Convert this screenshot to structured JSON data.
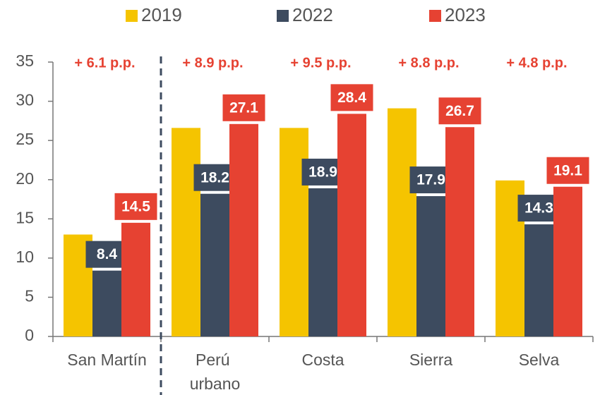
{
  "chart_data": {
    "type": "bar",
    "categories": [
      "San Martín",
      "Perú urbano",
      "Costa",
      "Sierra",
      "Selva"
    ],
    "series": [
      {
        "name": "2019",
        "color": "#f5c400",
        "values": [
          13,
          26.6,
          26.6,
          29.1,
          19.9
        ]
      },
      {
        "name": "2022",
        "color": "#3d4b5f",
        "values": [
          8.4,
          18.2,
          18.9,
          17.9,
          14.3
        ]
      },
      {
        "name": "2023",
        "color": "#e64232",
        "values": [
          14.5,
          27.1,
          28.4,
          26.7,
          19.1
        ]
      }
    ],
    "labeled_series": [
      1,
      2
    ],
    "annotations": [
      "+ 6.1 p.p.",
      "+ 8.9 p.p.",
      "+ 9.5 p.p.",
      "+ 8.8 p.p.",
      "+ 4.8 p.p."
    ],
    "ylim": [
      0,
      35
    ],
    "yticks": [
      0,
      5,
      10,
      15,
      20,
      25,
      30,
      35
    ]
  }
}
